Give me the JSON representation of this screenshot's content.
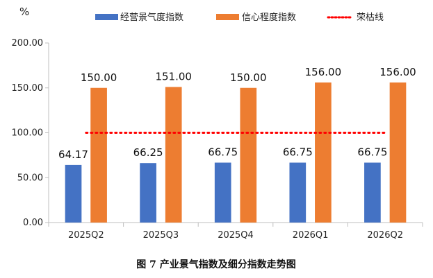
{
  "chart_data": {
    "type": "bar",
    "unit": "%",
    "categories": [
      "2025Q2",
      "2025Q3",
      "2025Q4",
      "2026Q1",
      "2026Q2"
    ],
    "series": [
      {
        "name": "经营景气度指数",
        "values": [
          64.17,
          66.25,
          66.75,
          66.75,
          66.75
        ],
        "color": "#4472c4"
      },
      {
        "name": "信心程度指数",
        "values": [
          150.0,
          151.0,
          150.0,
          156.0,
          156.0
        ],
        "color": "#ed7d31"
      }
    ],
    "reference_line": {
      "name": "荣枯线",
      "value": 100,
      "color": "#ff0000",
      "style": "dotted"
    },
    "y_ticks": [
      "0.00",
      "50.00",
      "100.00",
      "150.00",
      "200.00"
    ],
    "ylim": [
      0,
      200
    ],
    "grid": false,
    "legend_position": "top",
    "caption": "图 7  产业景气指数及细分指数走势图"
  }
}
